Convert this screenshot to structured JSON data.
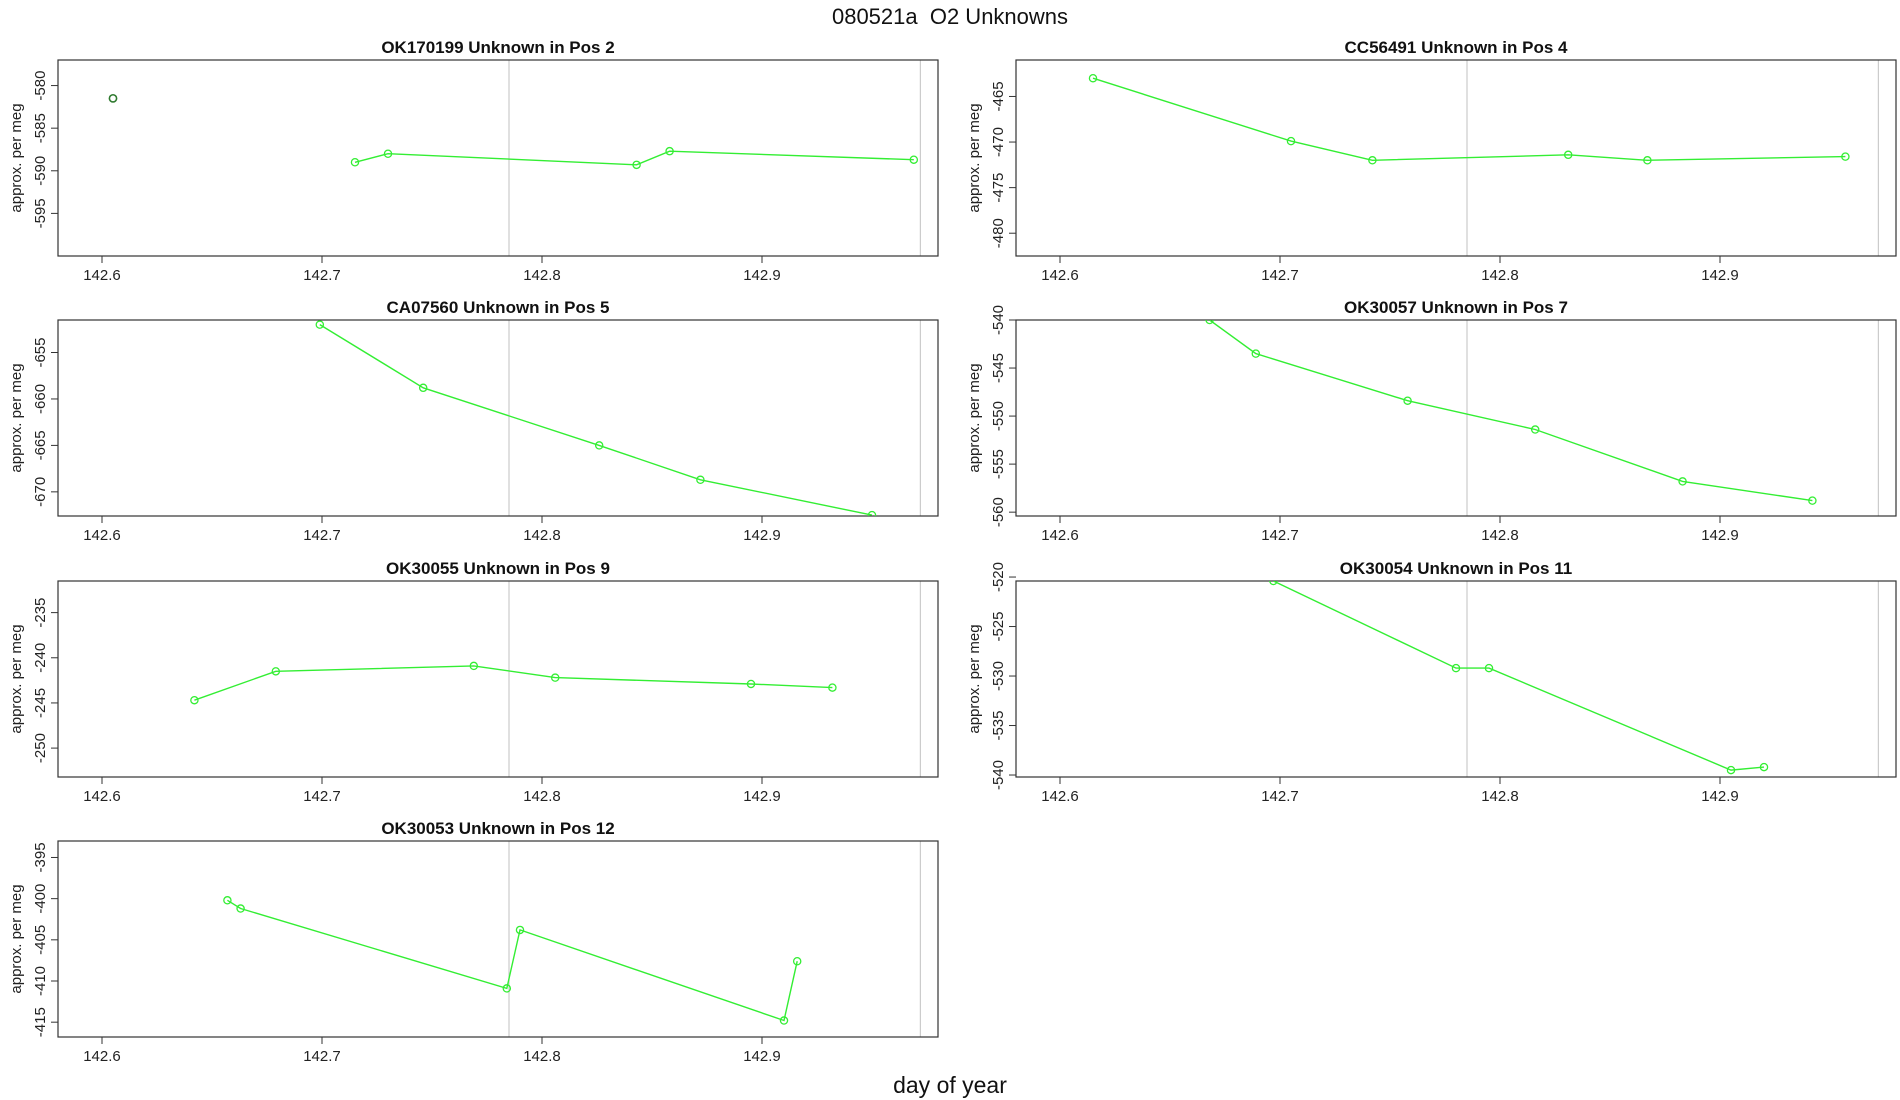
{
  "figure": {
    "title": "080521a  O2 Unknowns",
    "xlabel": "day of year"
  },
  "colors": {
    "line": "#33ee33",
    "outlier_marker": "#2f7a2f",
    "reference_line": "#cccccc",
    "axis": "#333333"
  },
  "chart_data": [
    {
      "type": "line",
      "title": "OK170199    Unknown in Pos 2",
      "xlabel": "",
      "ylabel": "approx. per meg",
      "xlim": [
        142.58,
        142.98
      ],
      "ylim": [
        -600,
        -577
      ],
      "xticks": [
        142.6,
        142.7,
        142.8,
        142.9
      ],
      "yticks": [
        -580,
        -585,
        -590,
        -595
      ],
      "vlines": [
        142.785,
        142.972
      ],
      "markers": [
        {
          "x": 142.605,
          "y": -581.5,
          "style": "dark"
        }
      ],
      "series": [
        {
          "name": "O2",
          "x": [
            142.715,
            142.73,
            142.843,
            142.858,
            142.969
          ],
          "y": [
            -589.0,
            -588.0,
            -589.3,
            -587.7,
            -588.7
          ]
        }
      ]
    },
    {
      "type": "line",
      "title": "CC56491    Unknown in Pos 4",
      "xlabel": "",
      "ylabel": "approx. per meg",
      "xlim": [
        142.58,
        142.98
      ],
      "ylim": [
        -482.5,
        -461
      ],
      "xticks": [
        142.6,
        142.7,
        142.8,
        142.9
      ],
      "yticks": [
        -465,
        -470,
        -475,
        -480
      ],
      "vlines": [
        142.785,
        142.972
      ],
      "markers": [],
      "series": [
        {
          "name": "O2",
          "x": [
            142.615,
            142.705,
            142.742,
            142.831,
            142.867,
            142.957
          ],
          "y": [
            -463.0,
            -469.9,
            -472.0,
            -471.4,
            -472.0,
            -471.6
          ]
        }
      ]
    },
    {
      "type": "line",
      "title": "CA07560    Unknown in Pos 5",
      "xlabel": "",
      "ylabel": "approx. per meg",
      "xlim": [
        142.58,
        142.98
      ],
      "ylim": [
        -672.6,
        -651.5
      ],
      "xticks": [
        142.6,
        142.7,
        142.8,
        142.9
      ],
      "yticks": [
        -655,
        -660,
        -665,
        -670
      ],
      "vlines": [
        142.785,
        142.972
      ],
      "markers": [],
      "series": [
        {
          "name": "O2",
          "x": [
            142.699,
            142.746,
            142.826,
            142.872,
            142.95
          ],
          "y": [
            -652.0,
            -658.8,
            -665.0,
            -668.7,
            -672.5
          ]
        }
      ]
    },
    {
      "type": "line",
      "title": "OK30057    Unknown in Pos 7",
      "xlabel": "",
      "ylabel": "approx. per meg",
      "xlim": [
        142.58,
        142.98
      ],
      "ylim": [
        -560.4,
        -540
      ],
      "xticks": [
        142.6,
        142.7,
        142.8,
        142.9
      ],
      "yticks": [
        -540,
        -545,
        -550,
        -555,
        -560
      ],
      "vlines": [
        142.785,
        142.972
      ],
      "markers": [],
      "series": [
        {
          "name": "O2",
          "x": [
            142.668,
            142.689,
            142.758,
            142.816,
            142.883,
            142.942
          ],
          "y": [
            -540.0,
            -543.5,
            -548.4,
            -551.4,
            -556.8,
            -558.8
          ]
        }
      ]
    },
    {
      "type": "line",
      "title": "OK30055    Unknown in Pos 9",
      "xlabel": "",
      "ylabel": "approx. per meg",
      "xlim": [
        142.58,
        142.98
      ],
      "ylim": [
        -253.2,
        -231.5
      ],
      "xticks": [
        142.6,
        142.7,
        142.8,
        142.9
      ],
      "yticks": [
        -235,
        -240,
        -245,
        -250
      ],
      "vlines": [
        142.785,
        142.972
      ],
      "markers": [],
      "series": [
        {
          "name": "O2",
          "x": [
            142.642,
            142.679,
            142.769,
            142.806,
            142.895,
            142.932
          ],
          "y": [
            -244.7,
            -241.5,
            -240.9,
            -242.2,
            -242.9,
            -243.3
          ]
        }
      ]
    },
    {
      "type": "line",
      "title": "OK30054    Unknown in Pos 11",
      "xlabel": "",
      "ylabel": "approx. per meg",
      "xlim": [
        142.58,
        142.98
      ],
      "ylim": [
        -540.2,
        -520.4
      ],
      "xticks": [
        142.6,
        142.7,
        142.8,
        142.9
      ],
      "yticks": [
        -520,
        -525,
        -530,
        -535,
        -540
      ],
      "vlines": [
        142.785,
        142.972
      ],
      "markers": [],
      "series": [
        {
          "name": "O2",
          "x": [
            142.697,
            142.78,
            142.795,
            142.905,
            142.92
          ],
          "y": [
            -520.4,
            -529.2,
            -529.2,
            -539.5,
            -539.2
          ]
        }
      ]
    },
    {
      "type": "line",
      "title": "OK30053    Unknown in Pos 12",
      "xlabel": "",
      "ylabel": "approx. per meg",
      "xlim": [
        142.58,
        142.98
      ],
      "ylim": [
        -416.8,
        -393
      ],
      "xticks": [
        142.6,
        142.7,
        142.8,
        142.9
      ],
      "yticks": [
        -395,
        -400,
        -405,
        -410,
        -415
      ],
      "vlines": [
        142.785,
        142.972
      ],
      "markers": [],
      "series": [
        {
          "name": "O2",
          "x": [
            142.657,
            142.663,
            142.784,
            142.79,
            142.91,
            142.916
          ],
          "y": [
            -400.2,
            -401.2,
            -410.9,
            -403.8,
            -414.8,
            -407.6
          ]
        }
      ]
    }
  ]
}
